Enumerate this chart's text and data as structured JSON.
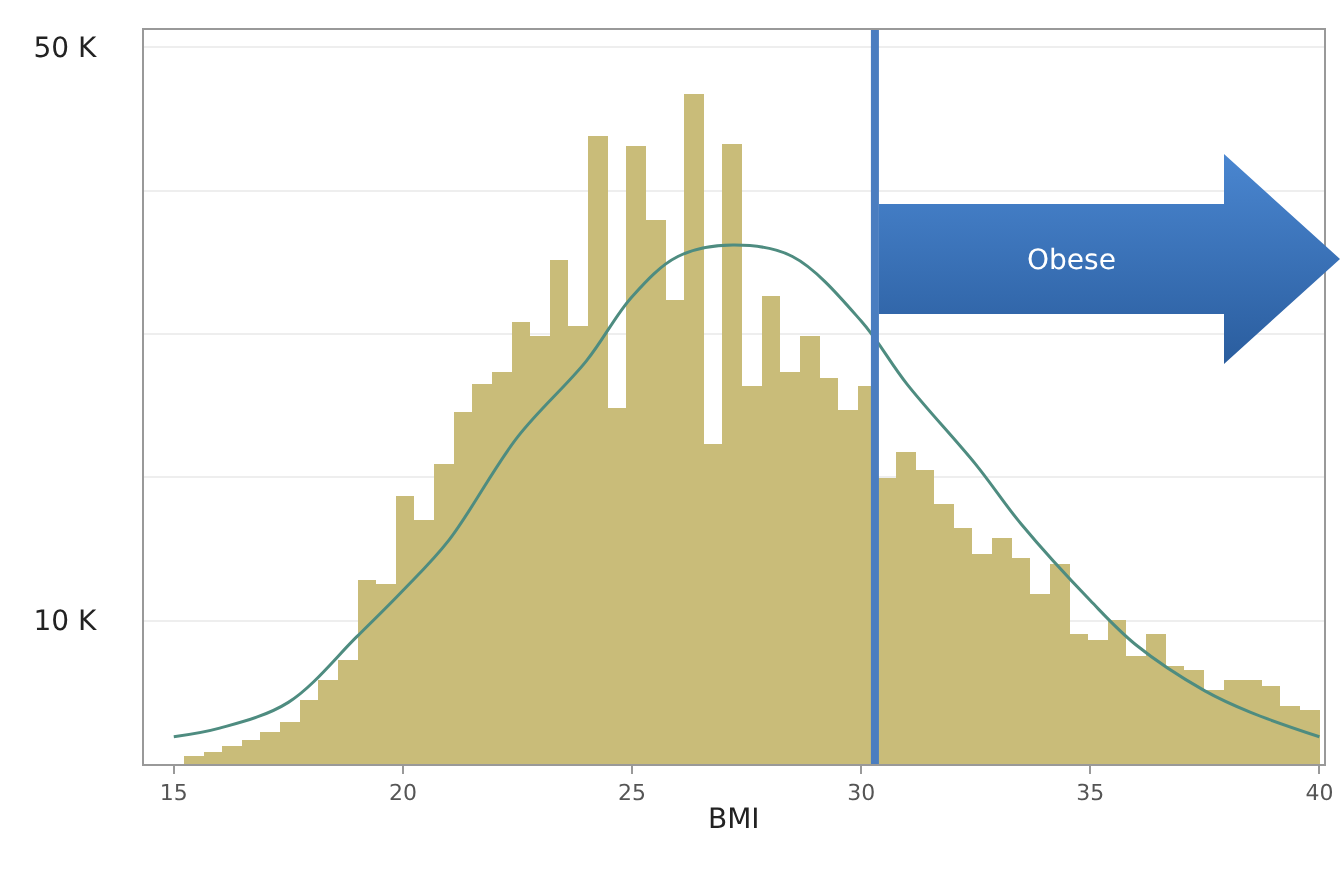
{
  "chart_data": {
    "type": "histogram",
    "xlabel": "BMI",
    "color": "#c9bc79",
    "bins": [
      15.22,
      15.64,
      16.06,
      16.48,
      16.9,
      17.32,
      17.74,
      18.16,
      18.58,
      19.0,
      19.42,
      19.84,
      20.26,
      20.68,
      21.1,
      21.52,
      21.94,
      22.36,
      22.78,
      23.2,
      23.62,
      24.04,
      24.46,
      24.88,
      25.3,
      25.72,
      26.14,
      26.56,
      26.98,
      27.4,
      27.82,
      28.24,
      28.66,
      29.08,
      29.5,
      29.92,
      30.34,
      30.76,
      31.18,
      31.6,
      32.02,
      32.44,
      32.86,
      33.28,
      33.7,
      34.12,
      34.54,
      34.96,
      35.38,
      35.8,
      36.22,
      36.64,
      37.06,
      37.48,
      37.9,
      38.32,
      38.74,
      39.16,
      39.58,
      40.0
    ],
    "values": [
      0.5,
      0.8,
      1.2,
      1.7,
      2.3,
      3.0,
      4.4,
      5.8,
      7.2,
      12.8,
      12.5,
      18.7,
      17.0,
      20.9,
      24.5,
      26.5,
      27.4,
      30.8,
      29.9,
      35.1,
      30.5,
      43.8,
      24.9,
      43.1,
      37.9,
      32.3,
      46.7,
      22.3,
      43.2,
      26.3,
      32.6,
      27.4,
      29.9,
      26.9,
      24.7,
      26.3,
      20.0,
      21.8,
      20.5,
      18.1,
      16.5,
      14.6,
      15.7,
      14.4,
      11.8,
      13.9,
      9.0,
      8.6,
      10.0,
      7.5,
      9.0,
      6.8,
      6.5,
      5.1,
      5.8,
      5.8,
      5.4,
      4.1,
      3.7
    ],
    "series": [
      {
        "type": "line",
        "color": "#4e8c80",
        "x": [
          15,
          16,
          17.5,
          19,
          20,
          21,
          22.5,
          24,
          25,
          26,
          27.2,
          28.5,
          30,
          31,
          32.5,
          33.5,
          35,
          36,
          37.5,
          38.5,
          40
        ],
        "values": [
          1.9,
          2.5,
          4.3,
          8.9,
          12.1,
          15.6,
          22.8,
          28.1,
          32.6,
          35.4,
          36.2,
          35.4,
          30.9,
          26.5,
          20.9,
          16.7,
          11.4,
          8.3,
          5.1,
          3.6,
          1.9
        ]
      }
    ],
    "ref_lines": [
      {
        "axis": "x",
        "value": 30.3,
        "color": "#4a7dc0"
      }
    ],
    "annotations": [
      "Obese"
    ],
    "xlim": [
      14.35,
      40.1
    ],
    "xticks": [
      15,
      20,
      25,
      30,
      35,
      40
    ],
    "ylim": [
      0,
      51.2
    ],
    "yticks": [
      {
        "value": 0,
        "label": null
      },
      {
        "value": 10,
        "label": "10 K"
      },
      {
        "value": 20,
        "label": null
      },
      {
        "value": 30,
        "label": null
      },
      {
        "value": 40,
        "label": null
      },
      {
        "value": 50,
        "label": "50 K"
      }
    ],
    "grid": "y"
  }
}
